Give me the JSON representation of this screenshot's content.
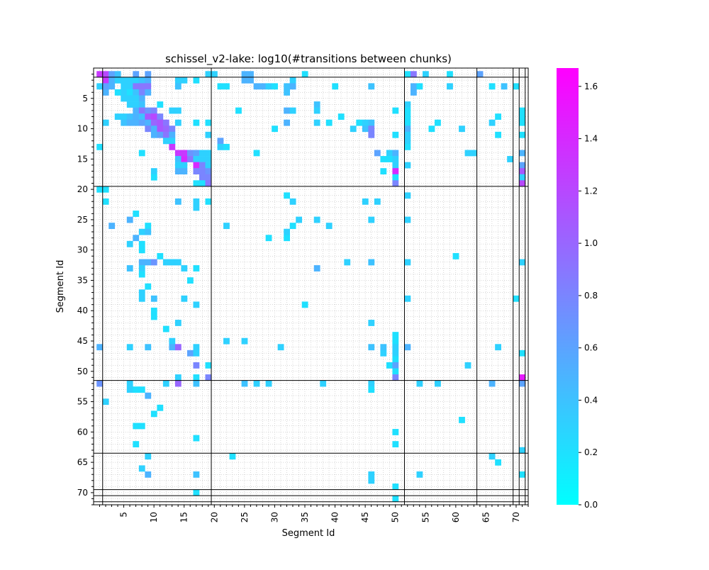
{
  "chart_data": {
    "type": "heatmap",
    "title": "schissel_v2-lake: log10(#transitions between chunks)",
    "xlabel": "Segment Id",
    "ylabel": "Segment Id",
    "n_segments": 72,
    "tick_labels": [
      5,
      10,
      15,
      20,
      25,
      30,
      35,
      40,
      45,
      50,
      55,
      60,
      65,
      70
    ],
    "chunk_boundaries": [
      1.5,
      19.5,
      51.5,
      63.5,
      69.5,
      70.5,
      71.5
    ],
    "grid": true,
    "colorbar": {
      "min": 0.0,
      "max": 1.67,
      "ticks": [
        "0.0",
        "0.2",
        "0.4",
        "0.6",
        "0.8",
        "1.0",
        "1.2",
        "1.4",
        "1.6"
      ],
      "colormap": "cool",
      "color_low": "#00ffff",
      "color_high": "#ff00ff"
    },
    "cells": [
      [
        1,
        1,
        1.3
      ],
      [
        1,
        2,
        1.2
      ],
      [
        1,
        3,
        0.6
      ],
      [
        1,
        4,
        0.4
      ],
      [
        1,
        7,
        0.6
      ],
      [
        1,
        9,
        0.6
      ],
      [
        1,
        19,
        0.3
      ],
      [
        1,
        20,
        0.3
      ],
      [
        1,
        25,
        0.5
      ],
      [
        1,
        26,
        0.5
      ],
      [
        1,
        35,
        0.2
      ],
      [
        1,
        52,
        0.2
      ],
      [
        1,
        53,
        0.9
      ],
      [
        1,
        55,
        0.3
      ],
      [
        1,
        59,
        0.2
      ],
      [
        1,
        64,
        0.6
      ],
      [
        2,
        2,
        1.3
      ],
      [
        2,
        3,
        0.5
      ],
      [
        2,
        4,
        0.3
      ],
      [
        2,
        5,
        0.3
      ],
      [
        2,
        6,
        0.3
      ],
      [
        2,
        7,
        0.3
      ],
      [
        2,
        8,
        0.4
      ],
      [
        2,
        9,
        0.5
      ],
      [
        2,
        14,
        0.3
      ],
      [
        2,
        15,
        0.3
      ],
      [
        2,
        17,
        0.2
      ],
      [
        2,
        25,
        0.5
      ],
      [
        2,
        26,
        0.5
      ],
      [
        2,
        33,
        0.3
      ],
      [
        3,
        1,
        0.3
      ],
      [
        3,
        2,
        0.6
      ],
      [
        3,
        3,
        0.5
      ],
      [
        3,
        5,
        0.3
      ],
      [
        3,
        6,
        0.3
      ],
      [
        3,
        7,
        0.9
      ],
      [
        3,
        8,
        0.9
      ],
      [
        3,
        9,
        0.9
      ],
      [
        3,
        14,
        0.4
      ],
      [
        3,
        21,
        0.2
      ],
      [
        3,
        22,
        0.2
      ],
      [
        3,
        27,
        0.5
      ],
      [
        3,
        28,
        0.5
      ],
      [
        3,
        29,
        0.3
      ],
      [
        3,
        30,
        0.2
      ],
      [
        3,
        32,
        0.4
      ],
      [
        3,
        33,
        0.5
      ],
      [
        3,
        40,
        0.2
      ],
      [
        3,
        46,
        0.4
      ],
      [
        3,
        53,
        0.5
      ],
      [
        3,
        54,
        0.2
      ],
      [
        3,
        59,
        0.3
      ],
      [
        3,
        66,
        0.2
      ],
      [
        3,
        68,
        0.4
      ],
      [
        3,
        70,
        0.2
      ],
      [
        4,
        2,
        0.5
      ],
      [
        4,
        4,
        0.2
      ],
      [
        4,
        5,
        0.3
      ],
      [
        4,
        6,
        0.2
      ],
      [
        4,
        7,
        0.4
      ],
      [
        4,
        8,
        0.8
      ],
      [
        4,
        9,
        0.5
      ],
      [
        4,
        32,
        0.4
      ],
      [
        4,
        53,
        0.5
      ],
      [
        5,
        5,
        0.3
      ],
      [
        5,
        6,
        0.3
      ],
      [
        5,
        7,
        0.3
      ],
      [
        5,
        8,
        0.5
      ],
      [
        6,
        6,
        0.3
      ],
      [
        6,
        7,
        0.3
      ],
      [
        6,
        8,
        0.4
      ],
      [
        6,
        11,
        0.2
      ],
      [
        6,
        37,
        0.4
      ],
      [
        6,
        52,
        0.3
      ],
      [
        7,
        7,
        0.5
      ],
      [
        7,
        8,
        0.9
      ],
      [
        7,
        9,
        0.7
      ],
      [
        7,
        10,
        0.8
      ],
      [
        7,
        13,
        0.3
      ],
      [
        7,
        14,
        0.3
      ],
      [
        7,
        24,
        0.2
      ],
      [
        7,
        32,
        0.5
      ],
      [
        7,
        33,
        0.3
      ],
      [
        7,
        37,
        0.3
      ],
      [
        7,
        50,
        0.2
      ],
      [
        7,
        52,
        0.2
      ],
      [
        7,
        71,
        0.2
      ],
      [
        8,
        4,
        0.3
      ],
      [
        8,
        5,
        0.3
      ],
      [
        8,
        6,
        0.4
      ],
      [
        8,
        7,
        0.5
      ],
      [
        8,
        8,
        0.4
      ],
      [
        8,
        9,
        1.1
      ],
      [
        8,
        10,
        1.2
      ],
      [
        8,
        11,
        0.8
      ],
      [
        8,
        41,
        0.2
      ],
      [
        8,
        52,
        0.2
      ],
      [
        8,
        67,
        0.2
      ],
      [
        8,
        71,
        0.2
      ],
      [
        9,
        2,
        0.3
      ],
      [
        9,
        5,
        0.4
      ],
      [
        9,
        6,
        0.5
      ],
      [
        9,
        7,
        0.5
      ],
      [
        9,
        8,
        0.6
      ],
      [
        9,
        9,
        0.5
      ],
      [
        9,
        10,
        1.0
      ],
      [
        9,
        11,
        1.1
      ],
      [
        9,
        12,
        0.9
      ],
      [
        9,
        14,
        0.3
      ],
      [
        9,
        17,
        0.2
      ],
      [
        9,
        19,
        0.2
      ],
      [
        9,
        32,
        0.5
      ],
      [
        9,
        37,
        0.3
      ],
      [
        9,
        39,
        0.2
      ],
      [
        9,
        44,
        0.2
      ],
      [
        9,
        45,
        0.3
      ],
      [
        9,
        46,
        0.4
      ],
      [
        9,
        52,
        0.2
      ],
      [
        9,
        57,
        0.2
      ],
      [
        9,
        66,
        0.3
      ],
      [
        9,
        71,
        0.2
      ],
      [
        10,
        9,
        0.8
      ],
      [
        10,
        10,
        0.5
      ],
      [
        10,
        11,
        1.1
      ],
      [
        10,
        12,
        1.0
      ],
      [
        10,
        13,
        0.8
      ],
      [
        10,
        30,
        0.2
      ],
      [
        10,
        43,
        0.3
      ],
      [
        10,
        45,
        0.4
      ],
      [
        10,
        46,
        0.8
      ],
      [
        10,
        52,
        0.5
      ],
      [
        10,
        56,
        0.2
      ],
      [
        10,
        61,
        0.3
      ],
      [
        11,
        10,
        0.5
      ],
      [
        11,
        11,
        0.6
      ],
      [
        11,
        12,
        0.9
      ],
      [
        11,
        13,
        0.5
      ],
      [
        11,
        19,
        0.3
      ],
      [
        11,
        46,
        0.8
      ],
      [
        11,
        50,
        0.2
      ],
      [
        11,
        52,
        0.3
      ],
      [
        11,
        67,
        0.2
      ],
      [
        11,
        71,
        0.2
      ],
      [
        12,
        12,
        0.3
      ],
      [
        12,
        13,
        0.3
      ],
      [
        12,
        21,
        0.6
      ],
      [
        12,
        52,
        0.3
      ],
      [
        13,
        1,
        0.2
      ],
      [
        13,
        13,
        1.3
      ],
      [
        13,
        21,
        0.3
      ],
      [
        13,
        22,
        0.2
      ],
      [
        13,
        52,
        0.2
      ],
      [
        14,
        8,
        0.2
      ],
      [
        14,
        14,
        1.3
      ],
      [
        14,
        15,
        1.3
      ],
      [
        14,
        16,
        0.7
      ],
      [
        14,
        17,
        0.6
      ],
      [
        14,
        18,
        0.3
      ],
      [
        14,
        19,
        0.3
      ],
      [
        14,
        27,
        0.2
      ],
      [
        14,
        47,
        0.6
      ],
      [
        14,
        49,
        0.3
      ],
      [
        14,
        50,
        0.5
      ],
      [
        14,
        62,
        0.3
      ],
      [
        14,
        63,
        0.3
      ],
      [
        14,
        71,
        0.5
      ],
      [
        15,
        14,
        0.4
      ],
      [
        15,
        15,
        1.4
      ],
      [
        15,
        16,
        0.9
      ],
      [
        15,
        17,
        0.3
      ],
      [
        15,
        18,
        0.3
      ],
      [
        15,
        19,
        0.3
      ],
      [
        15,
        48,
        0.2
      ],
      [
        15,
        49,
        0.2
      ],
      [
        15,
        50,
        0.3
      ],
      [
        15,
        69,
        0.3
      ],
      [
        16,
        14,
        0.3
      ],
      [
        16,
        15,
        0.3
      ],
      [
        16,
        17,
        1.4
      ],
      [
        16,
        18,
        0.8
      ],
      [
        16,
        19,
        0.3
      ],
      [
        16,
        50,
        0.3
      ],
      [
        16,
        52,
        0.3
      ],
      [
        16,
        71,
        0.6
      ],
      [
        17,
        10,
        0.3
      ],
      [
        17,
        14,
        0.5
      ],
      [
        17,
        15,
        0.5
      ],
      [
        17,
        17,
        0.8
      ],
      [
        17,
        18,
        0.8
      ],
      [
        17,
        19,
        0.7
      ],
      [
        17,
        48,
        0.2
      ],
      [
        17,
        50,
        1.4
      ],
      [
        17,
        71,
        1.1
      ],
      [
        18,
        10,
        0.2
      ],
      [
        18,
        18,
        0.8
      ],
      [
        18,
        19,
        0.8
      ],
      [
        18,
        50,
        0.2
      ],
      [
        18,
        71,
        0.3
      ],
      [
        19,
        17,
        0.2
      ],
      [
        19,
        18,
        0.2
      ],
      [
        19,
        19,
        0.9
      ],
      [
        19,
        50,
        0.8
      ],
      [
        19,
        71,
        1.2
      ],
      [
        20,
        1,
        0.2
      ],
      [
        20,
        2,
        0.2
      ],
      [
        21,
        32,
        0.2
      ],
      [
        21,
        52,
        0.3
      ],
      [
        22,
        2,
        0.2
      ],
      [
        22,
        14,
        0.4
      ],
      [
        22,
        17,
        0.3
      ],
      [
        22,
        19,
        0.2
      ],
      [
        22,
        33,
        0.3
      ],
      [
        22,
        45,
        0.3
      ],
      [
        22,
        47,
        0.3
      ],
      [
        23,
        17,
        0.3
      ],
      [
        24,
        7,
        0.2
      ],
      [
        25,
        6,
        0.5
      ],
      [
        25,
        34,
        0.3
      ],
      [
        25,
        37,
        0.3
      ],
      [
        25,
        46,
        0.3
      ],
      [
        25,
        52,
        0.3
      ],
      [
        26,
        3,
        0.5
      ],
      [
        26,
        9,
        0.2
      ],
      [
        26,
        22,
        0.3
      ],
      [
        26,
        33,
        0.2
      ],
      [
        26,
        39,
        0.3
      ],
      [
        27,
        8,
        0.3
      ],
      [
        27,
        9,
        0.4
      ],
      [
        27,
        32,
        0.3
      ],
      [
        28,
        7,
        0.5
      ],
      [
        28,
        29,
        0.2
      ],
      [
        28,
        32,
        0.2
      ],
      [
        29,
        6,
        0.3
      ],
      [
        29,
        8,
        0.2
      ],
      [
        30,
        8,
        0.2
      ],
      [
        31,
        11,
        0.2
      ],
      [
        31,
        60,
        0.2
      ],
      [
        32,
        8,
        0.5
      ],
      [
        32,
        9,
        0.5
      ],
      [
        32,
        10,
        0.7
      ],
      [
        32,
        12,
        0.3
      ],
      [
        32,
        13,
        0.3
      ],
      [
        32,
        14,
        0.3
      ],
      [
        32,
        42,
        0.3
      ],
      [
        32,
        46,
        0.4
      ],
      [
        32,
        52,
        0.3
      ],
      [
        32,
        71,
        0.3
      ],
      [
        33,
        6,
        0.4
      ],
      [
        33,
        8,
        0.3
      ],
      [
        33,
        15,
        0.3
      ],
      [
        33,
        17,
        0.2
      ],
      [
        33,
        37,
        0.5
      ],
      [
        34,
        8,
        0.2
      ],
      [
        35,
        16,
        0.2
      ],
      [
        36,
        9,
        0.2
      ],
      [
        37,
        8,
        0.3
      ],
      [
        38,
        8,
        0.3
      ],
      [
        38,
        10,
        0.4
      ],
      [
        38,
        15,
        0.3
      ],
      [
        38,
        52,
        0.3
      ],
      [
        38,
        70,
        0.2
      ],
      [
        39,
        17,
        0.3
      ],
      [
        39,
        35,
        0.2
      ],
      [
        40,
        10,
        0.2
      ],
      [
        41,
        10,
        0.2
      ],
      [
        42,
        14,
        0.3
      ],
      [
        42,
        46,
        0.3
      ],
      [
        43,
        12,
        0.2
      ],
      [
        44,
        50,
        0.2
      ],
      [
        45,
        13,
        0.3
      ],
      [
        45,
        22,
        0.3
      ],
      [
        45,
        25,
        0.3
      ],
      [
        45,
        50,
        0.2
      ],
      [
        46,
        1,
        0.5
      ],
      [
        46,
        6,
        0.3
      ],
      [
        46,
        9,
        0.4
      ],
      [
        46,
        13,
        0.5
      ],
      [
        46,
        14,
        1.0
      ],
      [
        46,
        17,
        0.3
      ],
      [
        46,
        31,
        0.3
      ],
      [
        46,
        46,
        0.4
      ],
      [
        46,
        48,
        0.4
      ],
      [
        46,
        50,
        0.3
      ],
      [
        46,
        52,
        0.5
      ],
      [
        46,
        67,
        0.3
      ],
      [
        47,
        16,
        0.6
      ],
      [
        47,
        17,
        0.3
      ],
      [
        47,
        48,
        0.3
      ],
      [
        47,
        50,
        0.3
      ],
      [
        47,
        71,
        0.2
      ],
      [
        48,
        50,
        0.2
      ],
      [
        49,
        17,
        0.8
      ],
      [
        49,
        19,
        0.2
      ],
      [
        49,
        49,
        0.2
      ],
      [
        49,
        50,
        0.6
      ],
      [
        49,
        62,
        0.3
      ],
      [
        50,
        50,
        0.2
      ],
      [
        51,
        14,
        0.3
      ],
      [
        51,
        17,
        0.2
      ],
      [
        51,
        19,
        0.8
      ],
      [
        51,
        50,
        0.8
      ],
      [
        51,
        71,
        1.5
      ],
      [
        52,
        1,
        0.7
      ],
      [
        52,
        6,
        0.3
      ],
      [
        52,
        12,
        0.3
      ],
      [
        52,
        14,
        1.0
      ],
      [
        52,
        17,
        0.4
      ],
      [
        52,
        25,
        0.4
      ],
      [
        52,
        27,
        0.3
      ],
      [
        52,
        29,
        0.3
      ],
      [
        52,
        38,
        0.3
      ],
      [
        52,
        46,
        0.3
      ],
      [
        52,
        54,
        0.3
      ],
      [
        52,
        57,
        0.3
      ],
      [
        52,
        66,
        0.5
      ],
      [
        52,
        71,
        0.6
      ],
      [
        53,
        6,
        0.3
      ],
      [
        53,
        7,
        0.2
      ],
      [
        53,
        8,
        0.2
      ],
      [
        53,
        46,
        0.2
      ],
      [
        54,
        9,
        0.5
      ],
      [
        55,
        2,
        0.3
      ],
      [
        56,
        11,
        0.2
      ],
      [
        57,
        10,
        0.2
      ],
      [
        58,
        61,
        0.2
      ],
      [
        59,
        7,
        0.2
      ],
      [
        59,
        8,
        0.2
      ],
      [
        60,
        50,
        0.2
      ],
      [
        61,
        17,
        0.2
      ],
      [
        62,
        7,
        0.2
      ],
      [
        62,
        50,
        0.2
      ],
      [
        63,
        71,
        0.3
      ],
      [
        64,
        9,
        0.3
      ],
      [
        64,
        23,
        0.2
      ],
      [
        64,
        66,
        0.3
      ],
      [
        65,
        67,
        0.2
      ],
      [
        66,
        8,
        0.3
      ],
      [
        67,
        9,
        0.5
      ],
      [
        67,
        17,
        0.4
      ],
      [
        67,
        46,
        0.3
      ],
      [
        67,
        54,
        0.3
      ],
      [
        67,
        71,
        0.2
      ],
      [
        68,
        46,
        0.3
      ],
      [
        69,
        50,
        0.2
      ],
      [
        70,
        17,
        0.2
      ],
      [
        71,
        50,
        0.2
      ]
    ]
  }
}
